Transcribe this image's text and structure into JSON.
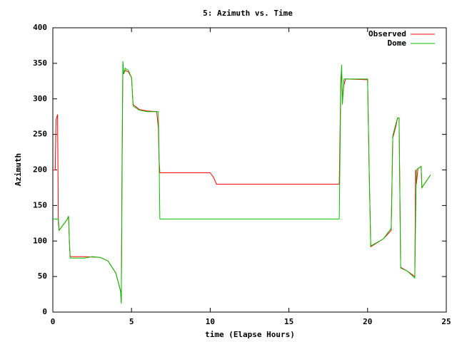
{
  "chart_data": {
    "type": "line",
    "title": "5: Azimuth vs. Time",
    "xlabel": "time (Elapse Hours)",
    "ylabel": "Azimuth",
    "xlim": [
      0,
      25
    ],
    "xticks": [
      0,
      5,
      10,
      15,
      20,
      25
    ],
    "ylim": [
      0,
      400
    ],
    "yticks": [
      0,
      50,
      100,
      150,
      200,
      250,
      300,
      350,
      400
    ],
    "grid": false,
    "legend": "top-right",
    "series": [
      {
        "name": "Observed",
        "color": "#ff0000",
        "x": [
          0,
          0.15,
          0.2,
          0.3,
          0.35,
          0.4,
          0.9,
          1.0,
          1.05,
          1.1,
          2.0,
          3.0,
          3.5,
          4.0,
          4.3,
          4.35,
          4.4,
          4.45,
          4.5,
          4.6,
          4.8,
          5.0,
          5.1,
          5.5,
          6.0,
          6.6,
          6.7,
          6.75,
          6.8,
          10.0,
          10.2,
          10.4,
          18.2,
          18.3,
          18.35,
          18.4,
          18.5,
          18.6,
          20.0,
          20.1,
          20.2,
          21.0,
          21.5,
          21.6,
          21.8,
          21.9,
          22.0,
          22.1,
          22.5,
          23.0,
          23.05,
          23.1,
          23.2,
          23.4,
          23.45,
          24.0
        ],
        "values": [
          200,
          200,
          270,
          278,
          125,
          115,
          130,
          135,
          100,
          78,
          78,
          77,
          72,
          55,
          30,
          15,
          200,
          350,
          335,
          340,
          338,
          330,
          292,
          285,
          283,
          282,
          260,
          215,
          196,
          196,
          190,
          180,
          180,
          330,
          340,
          300,
          320,
          328,
          327,
          200,
          92,
          103,
          115,
          245,
          262,
          273,
          273,
          63,
          58,
          50,
          200,
          180,
          202,
          205,
          175,
          193
        ]
      },
      {
        "name": "Dome",
        "color": "#00c000",
        "x": [
          0,
          0.35,
          0.4,
          0.9,
          1.0,
          1.05,
          1.1,
          2.0,
          2.5,
          3.0,
          3.5,
          4.0,
          4.3,
          4.35,
          4.4,
          4.45,
          4.5,
          4.6,
          4.8,
          5.0,
          5.1,
          5.5,
          6.0,
          6.7,
          6.75,
          6.8,
          18.2,
          18.3,
          18.35,
          18.4,
          18.5,
          20.0,
          20.1,
          20.2,
          21.0,
          21.5,
          21.6,
          21.8,
          21.9,
          22.0,
          22.1,
          22.5,
          23.0,
          23.05,
          23.1,
          23.4,
          23.45,
          24.0
        ],
        "values": [
          131,
          131,
          115,
          130,
          135,
          100,
          76,
          76,
          78,
          77,
          72,
          55,
          30,
          12,
          230,
          353,
          335,
          343,
          340,
          330,
          290,
          284,
          282,
          282,
          220,
          131,
          131,
          320,
          348,
          292,
          328,
          328,
          200,
          93,
          103,
          118,
          248,
          265,
          273,
          273,
          62,
          58,
          48,
          130,
          200,
          205,
          175,
          193
        ]
      }
    ]
  }
}
